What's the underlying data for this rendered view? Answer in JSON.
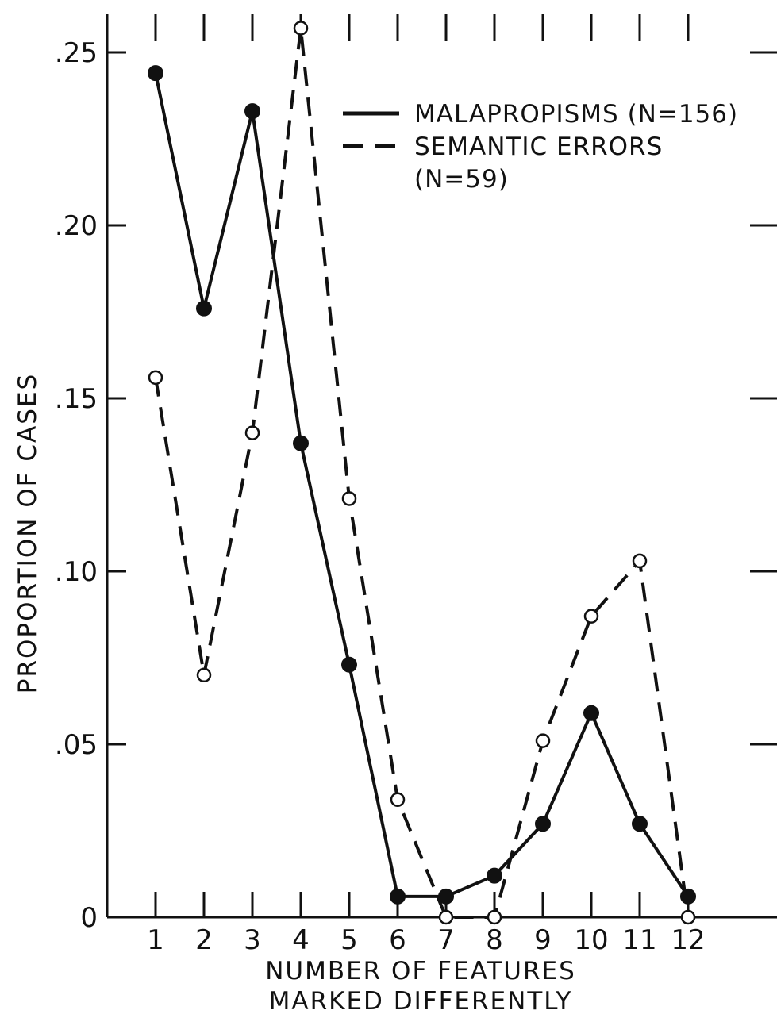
{
  "chart_data": {
    "type": "line",
    "x": [
      1,
      2,
      3,
      4,
      5,
      6,
      7,
      8,
      9,
      10,
      11,
      12
    ],
    "x_tick_labels": [
      "1",
      "2",
      "3",
      "4",
      "5",
      "6",
      "7",
      "8",
      "9",
      "10",
      "11",
      "12"
    ],
    "y_tick_labels": [
      "0",
      ".05",
      ".10",
      ".15",
      ".20",
      ".25"
    ],
    "y_ticks": [
      0,
      0.05,
      0.1,
      0.15,
      0.2,
      0.25
    ],
    "xlabel_line1": "NUMBER OF FEATURES",
    "xlabel_line2": "MARKED DIFFERENTLY",
    "ylabel": "PROPORTION OF CASES",
    "xlim": [
      0,
      13
    ],
    "ylim": [
      0,
      0.263
    ],
    "grid": false,
    "legend_position": "top-right",
    "series": [
      {
        "name": "MALAPROPISMS (N=156)",
        "style": "solid",
        "marker": "filled-circle",
        "values": [
          0.244,
          0.176,
          0.233,
          0.137,
          0.073,
          0.006,
          0.006,
          0.012,
          0.027,
          0.059,
          0.027,
          0.006
        ]
      },
      {
        "name": "SEMANTIC ERRORS",
        "name_line2": "(N=59)",
        "style": "dashed",
        "marker": "open-circle",
        "values": [
          0.156,
          0.07,
          0.14,
          0.257,
          0.121,
          0.034,
          0.0,
          0.0,
          0.051,
          0.087,
          0.103,
          0.0
        ]
      }
    ]
  }
}
